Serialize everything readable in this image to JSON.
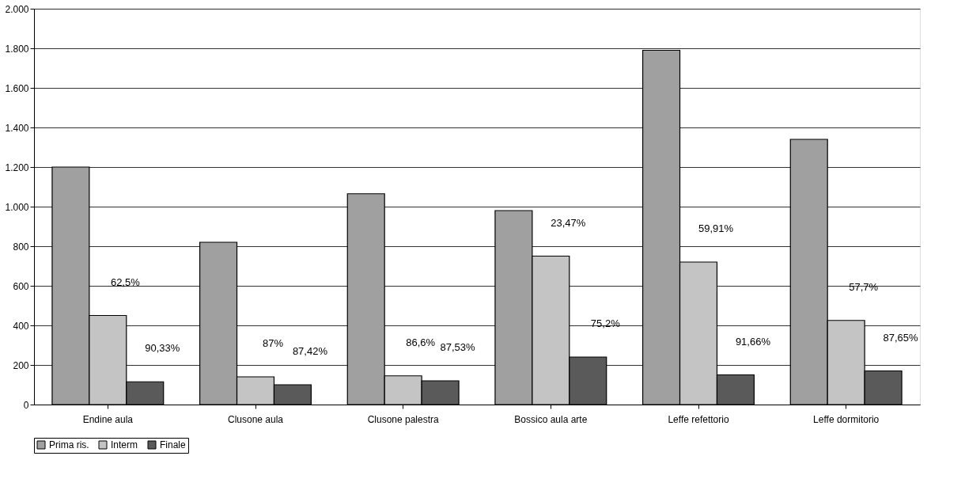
{
  "chart_data": {
    "type": "bar",
    "categories": [
      "Endine aula",
      "Clusone aula",
      "Clusone palestra",
      "Bossico aula arte",
      "Leffe refettorio",
      "Leffe dormitorio"
    ],
    "series": [
      {
        "name": "Prima ris.",
        "color": "#a0a0a0",
        "values": [
          1200,
          820,
          1065,
          980,
          1790,
          1340
        ]
      },
      {
        "name": "Interm",
        "color": "#c4c4c4",
        "values": [
          450,
          140,
          145,
          750,
          720,
          425
        ]
      },
      {
        "name": "Finale",
        "color": "#5a5a5a",
        "values": [
          115,
          100,
          120,
          240,
          150,
          170
        ]
      }
    ],
    "ylim": [
      0,
      2000
    ],
    "yticks": [
      0,
      200,
      400,
      600,
      800,
      {
        "value": 1000,
        "label": "1.000"
      },
      {
        "value": 1200,
        "label": "1.200"
      },
      {
        "value": 1400,
        "label": "1.400"
      },
      {
        "value": 1600,
        "label": "1.600"
      },
      {
        "value": 1800,
        "label": "1.800"
      },
      {
        "value": 2000,
        "label": "2.000"
      }
    ],
    "grid": "y",
    "legend": "bottom",
    "annotations": [
      "62,5%",
      "90,33%",
      "87%",
      "87,42%",
      "86,6%",
      "87,53%",
      "23,47%",
      "75,2%",
      "59,91%",
      "91,66%",
      "57,7%",
      "87,65%"
    ]
  }
}
